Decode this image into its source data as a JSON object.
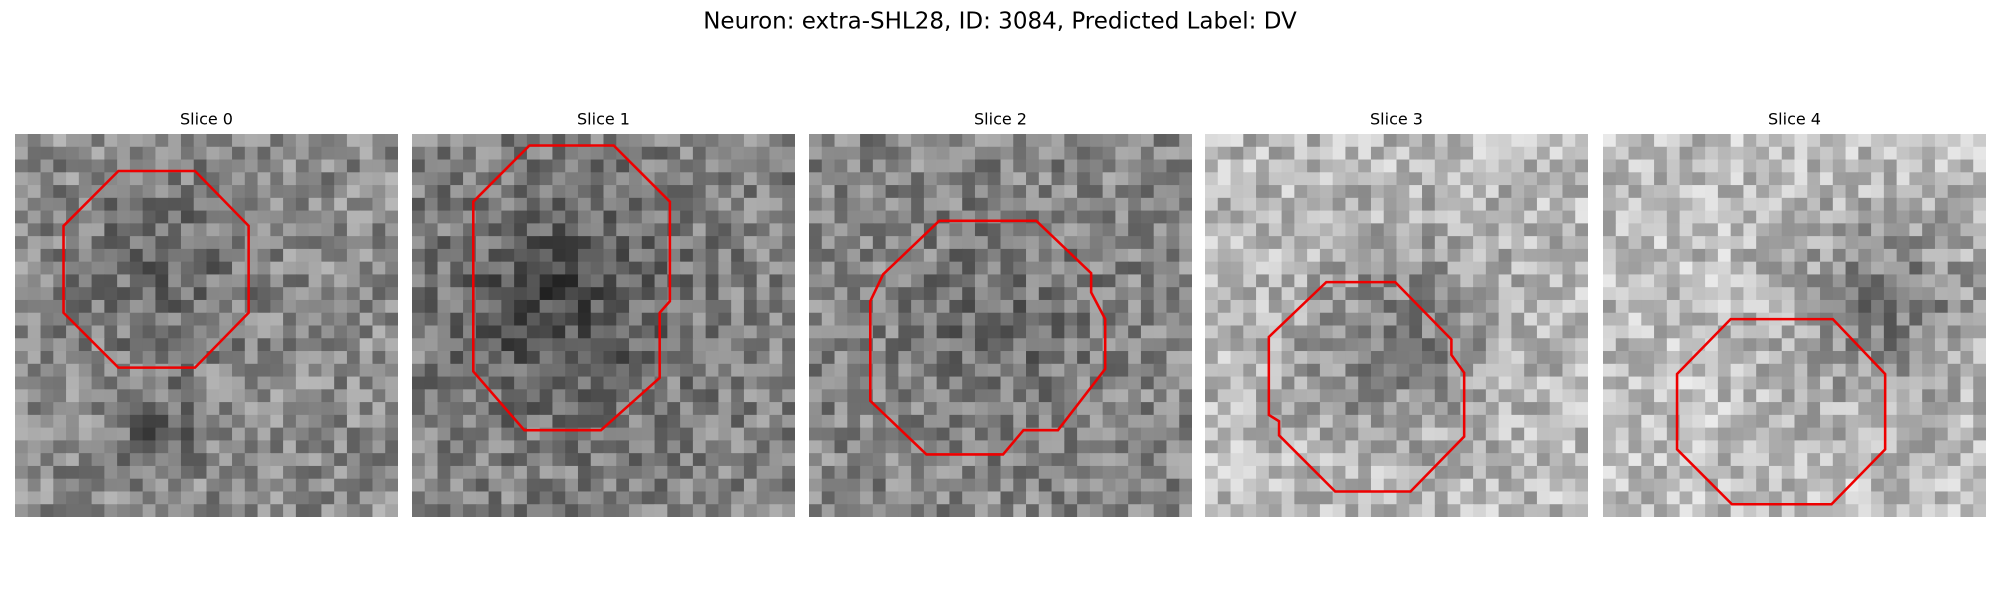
{
  "title": "Neuron: extra-SHL28, ID: 3084, Predicted Label: DV",
  "panels": [
    {
      "title": "Slice 0"
    },
    {
      "title": "Slice 1"
    },
    {
      "title": "Slice 2"
    },
    {
      "title": "Slice 3"
    },
    {
      "title": "Slice 4"
    }
  ]
}
